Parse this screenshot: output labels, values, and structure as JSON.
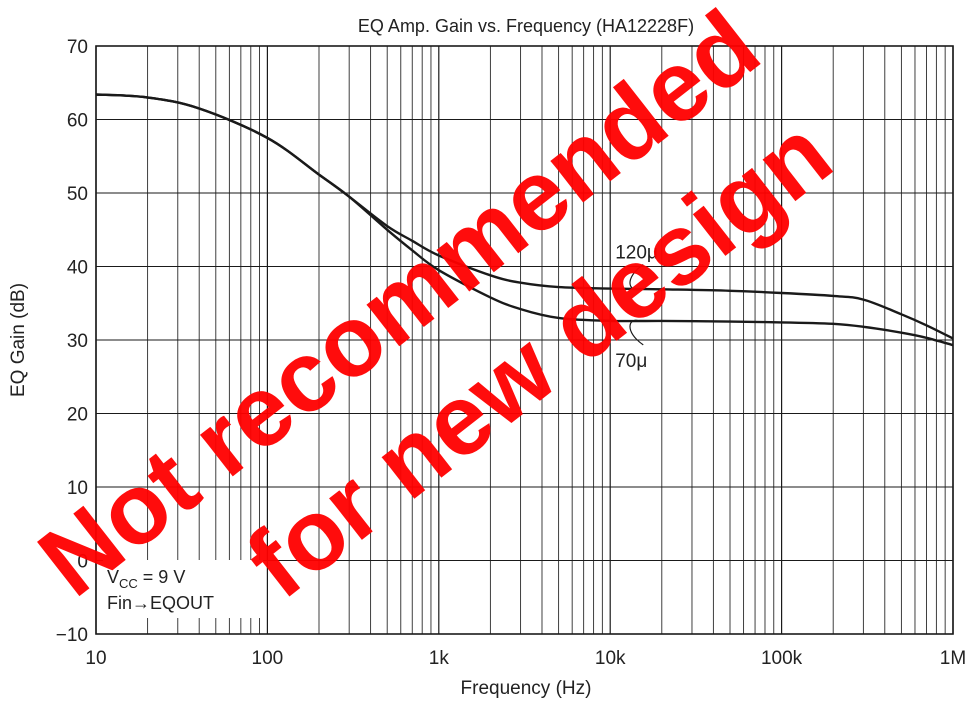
{
  "watermark": {
    "line1": "Not recommended",
    "line2": "for new design",
    "color": "#ff0000"
  },
  "chart_data": {
    "type": "line",
    "title": "EQ Amp. Gain vs. Frequency (HA12228F)",
    "xlabel": "Frequency  (Hz)",
    "ylabel": "EQ Gain  (dB)",
    "xscale": "log",
    "xlim": [
      10,
      1000000
    ],
    "ylim": [
      -10,
      70
    ],
    "grid": true,
    "x_ticks": [
      10,
      100,
      1000,
      10000,
      100000,
      1000000
    ],
    "x_tick_labels": [
      "10",
      "100",
      "1k",
      "10k",
      "100k",
      "1M"
    ],
    "y_ticks": [
      -10,
      0,
      10,
      20,
      30,
      40,
      50,
      60,
      70
    ],
    "y_tick_labels": [
      "−10",
      "0",
      "10",
      "20",
      "30",
      "40",
      "50",
      "60",
      "70"
    ],
    "annotation_lines": [
      "V_CC = 9 V",
      "Fin→EQOUT"
    ],
    "series": [
      {
        "name": "120μ",
        "color": "#1a1a1a",
        "x": [
          10,
          20,
          40,
          100,
          200,
          300,
          500,
          700,
          1000,
          2000,
          3000,
          5000,
          10000,
          20000,
          50000,
          100000,
          200000,
          300000,
          500000,
          700000,
          1000000
        ],
        "y": [
          63.4,
          63.0,
          61.5,
          57.5,
          52.5,
          49.5,
          45.5,
          43.5,
          41.5,
          38.8,
          37.8,
          37.2,
          37.0,
          36.9,
          36.7,
          36.4,
          36.0,
          35.5,
          33.5,
          32.0,
          30.2
        ]
      },
      {
        "name": "70μ",
        "color": "#1a1a1a",
        "x": [
          10,
          20,
          40,
          100,
          200,
          300,
          500,
          700,
          1000,
          2000,
          3000,
          5000,
          10000,
          20000,
          50000,
          100000,
          200000,
          300000,
          500000,
          700000,
          1000000
        ],
        "y": [
          63.4,
          63.0,
          61.5,
          57.5,
          52.5,
          49.5,
          45.0,
          42.2,
          39.5,
          35.8,
          34.2,
          33.0,
          32.6,
          32.6,
          32.5,
          32.4,
          32.2,
          31.8,
          31.0,
          30.3,
          29.3
        ]
      }
    ]
  }
}
